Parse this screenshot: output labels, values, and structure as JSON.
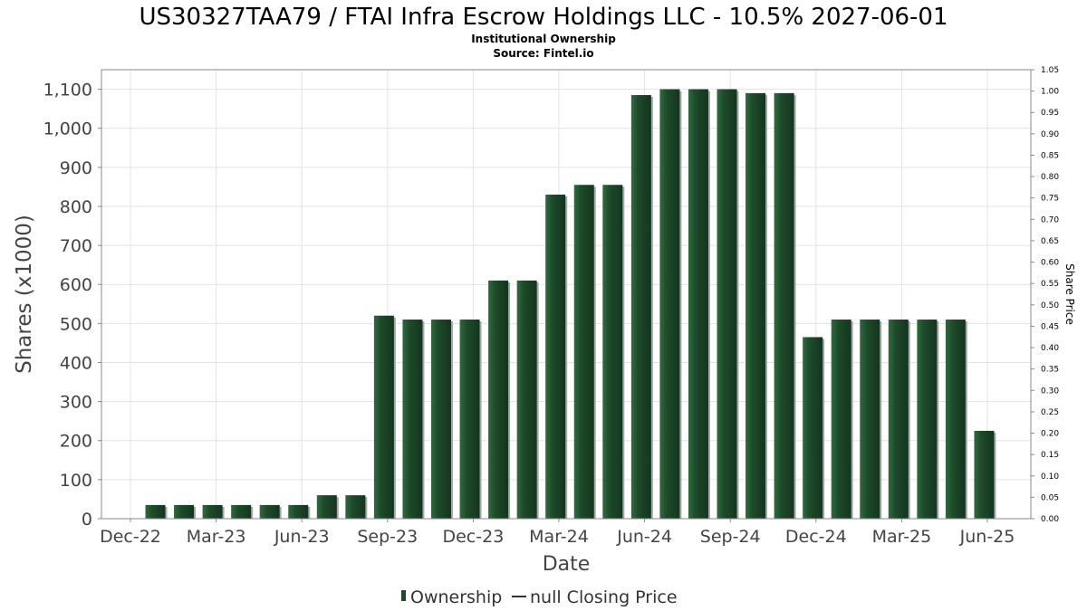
{
  "chart_data": {
    "type": "bar",
    "title": "US30327TAA79 / FTAI Infra Escrow Holdings LLC - 10.5% 2027-06-01",
    "subtitle_1": "Institutional Ownership",
    "subtitle_2": "Source: Fintel.io",
    "xlabel": "Date",
    "ylabel": "Shares (x1000)",
    "y2label": "Share Price",
    "ylim": [
      0,
      1150
    ],
    "y_ticks": [
      {
        "value": 0,
        "label": "0"
      },
      {
        "value": 100,
        "label": "100"
      },
      {
        "value": 200,
        "label": "200"
      },
      {
        "value": 300,
        "label": "300"
      },
      {
        "value": 400,
        "label": "400"
      },
      {
        "value": 500,
        "label": "500"
      },
      {
        "value": 600,
        "label": "600"
      },
      {
        "value": 700,
        "label": "700"
      },
      {
        "value": 800,
        "label": "800"
      },
      {
        "value": 900,
        "label": "900"
      },
      {
        "value": 1000,
        "label": "1,000"
      },
      {
        "value": 1100,
        "label": "1,100"
      }
    ],
    "y2lim": [
      0,
      1.05
    ],
    "y2_ticks": [
      "0.00",
      "0.05",
      "0.10",
      "0.15",
      "0.20",
      "0.25",
      "0.30",
      "0.35",
      "0.40",
      "0.45",
      "0.50",
      "0.55",
      "0.60",
      "0.65",
      "0.70",
      "0.75",
      "0.80",
      "0.85",
      "0.90",
      "0.95",
      "1.00",
      "1.05"
    ],
    "x_ticks": [
      "Dec-22",
      "Mar-23",
      "Jun-23",
      "Sep-23",
      "Dec-23",
      "Mar-24",
      "Jun-24",
      "Sep-24",
      "Dec-24",
      "Mar-25",
      "Jun-25"
    ],
    "series": [
      {
        "name": "Ownership",
        "color": "#1e4a2a",
        "values": [
          35,
          35,
          35,
          35,
          35,
          35,
          60,
          60,
          520,
          510,
          510,
          510,
          610,
          610,
          830,
          855,
          855,
          1085,
          1100,
          1100,
          1100,
          1090,
          1090,
          465,
          510,
          510,
          510,
          510,
          510,
          225
        ]
      }
    ],
    "legend": [
      {
        "label": "Ownership",
        "marker": "bar",
        "color": "#1e4a2a"
      },
      {
        "label": "null Closing Price",
        "marker": "line",
        "color": "#333333"
      }
    ],
    "legend_position": "bottom",
    "grid": true
  }
}
